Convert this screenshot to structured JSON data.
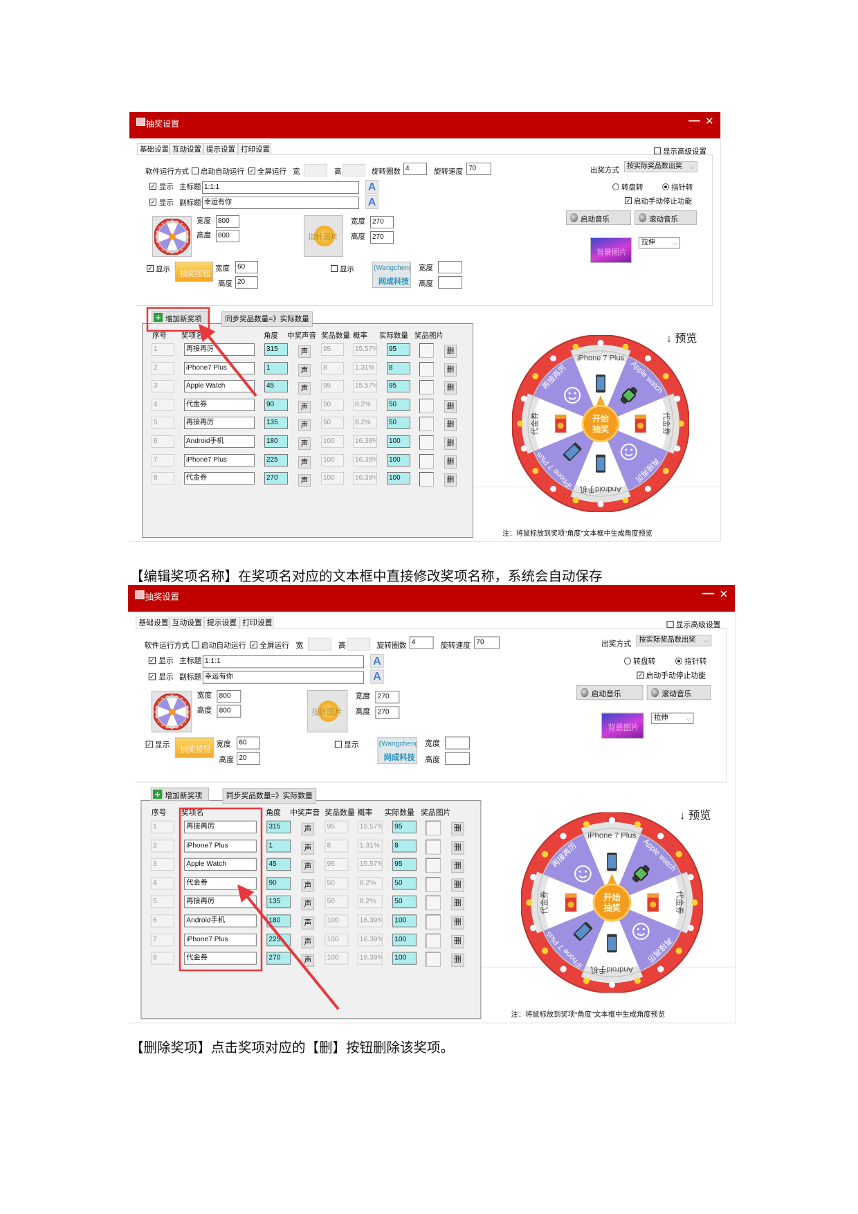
{
  "captions": {
    "edit": "【编辑奖项名称】在奖项名对应的文本框中直接修改奖项名称，系统会自动保存",
    "delete": "【删除奖项】点击奖项对应的【删】按钮删除该奖项。"
  },
  "dialog": {
    "title": "抽奖设置",
    "minimize": "—",
    "close": "✕",
    "tabs": [
      "基础设置",
      "互动设置",
      "提示设置",
      "打印设置"
    ],
    "advanced_label": "显示高级设置",
    "advanced_checked": false,
    "run_mode_label": "软件运行方式",
    "autostart_label": "启动自动运行",
    "autostart_checked": false,
    "fullscreen_label": "全屏运行",
    "fullscreen_checked": true,
    "screen_width_label": "宽",
    "screen_width_value": "",
    "screen_height_label": "高",
    "screen_height_value": "",
    "spins_label": "旋转圈数",
    "spins_value": "4",
    "speed_label": "旋转速度",
    "speed_value": "70",
    "draw_mode_label": "出奖方式",
    "draw_mode_value": "按实际奖品数出奖",
    "rotate_options": [
      {
        "label": "转盘转",
        "selected": false
      },
      {
        "label": "指针转",
        "selected": true
      }
    ],
    "manual_stop_label": "启动手动停止功能",
    "manual_stop_checked": true,
    "start_music_label": "启动音乐",
    "roll_music_label": "滚动音乐",
    "bg_image_text": "背景图片",
    "bg_fit_value": "拉伸",
    "show_label": "显示",
    "main_title_label": "主标题",
    "main_title_value": "1:1:1",
    "main_title_checked": true,
    "subtitle_label": "副标题",
    "subtitle_value": "幸运有你",
    "subtitle_checked": true,
    "width_label": "宽度",
    "height_label": "高度",
    "wheel_width": "800",
    "wheel_height": "800",
    "pointer_image_text": "指针图片",
    "pointer_width": "270",
    "pointer_height": "270",
    "button_show_checked": true,
    "button_image_text": "抽奖按钮",
    "button_width": "60",
    "button_height": "20",
    "logo_show_checked": false,
    "logo_text_top": "(Wangcheng",
    "logo_text_bottom": "网成科技",
    "logo_width": "",
    "logo_height": "",
    "add_item_label": "增加新奖项",
    "sync_label": "同步奖品数量=》实际数量",
    "columns": [
      "序号",
      "奖项名",
      "角度",
      "中奖声音",
      "奖品数量",
      "概率",
      "实际数量",
      "奖品图片"
    ],
    "rows": [
      {
        "index": "1",
        "name": "再接再厉",
        "angle": "315",
        "sound": "声",
        "qty": "95",
        "prob": "15.57%",
        "actual": "95",
        "del": "删"
      },
      {
        "index": "2",
        "name": "iPhone7 Plus",
        "angle": "1",
        "sound": "声",
        "qty": "8",
        "prob": "1.31%",
        "actual": "8",
        "del": "删"
      },
      {
        "index": "3",
        "name": "Apple Watch",
        "angle": "45",
        "sound": "声",
        "qty": "95",
        "prob": "15.57%",
        "actual": "95",
        "del": "删"
      },
      {
        "index": "4",
        "name": "代金券",
        "angle": "90",
        "sound": "声",
        "qty": "50",
        "prob": "8.2%",
        "actual": "50",
        "del": "删"
      },
      {
        "index": "5",
        "name": "再接再厉",
        "angle": "135",
        "sound": "声",
        "qty": "50",
        "prob": "8.2%",
        "actual": "50",
        "del": "删"
      },
      {
        "index": "6",
        "name": "Android手机",
        "angle": "180",
        "sound": "声",
        "qty": "100",
        "prob": "16.39%",
        "actual": "100",
        "del": "删"
      },
      {
        "index": "7",
        "name": "iPhone7 Plus",
        "angle": "225",
        "sound": "声",
        "qty": "100",
        "prob": "16.39%",
        "actual": "100",
        "del": "删"
      },
      {
        "index": "8",
        "name": "代金券",
        "angle": "270",
        "sound": "声",
        "qty": "100",
        "prob": "16.39%",
        "actual": "100",
        "del": "删"
      }
    ],
    "preview_label": "↓ 预览",
    "note": "注：将鼠标放到奖项“角度”文本框中生成角度预览",
    "wheel": {
      "center_label": [
        "开始",
        "抽奖"
      ],
      "segments": [
        {
          "label": "iPhone 7 Plus",
          "color": "#ffffff",
          "icon": "phone-icon"
        },
        {
          "label": "Apple watch",
          "color": "#9d90e2",
          "icon": "watch-icon"
        },
        {
          "label": "代金券",
          "color": "#ffffff",
          "icon": "coupon-icon"
        },
        {
          "label": "再接再厉",
          "color": "#9d90e2",
          "icon": "smiley-icon"
        },
        {
          "label": "Android手机",
          "color": "#ffffff",
          "icon": "phone-icon"
        },
        {
          "label": "iPhone 7 Plus",
          "color": "#9d90e2",
          "icon": "phone-icon"
        },
        {
          "label": "代金券",
          "color": "#ffffff",
          "icon": "coupon-icon"
        },
        {
          "label": "再接再厉",
          "color": "#9d90e2",
          "icon": "smiley-icon"
        }
      ]
    }
  },
  "colors": {
    "titlebar": "#c10000",
    "highlight": "#e8383d",
    "input_cyan": "#aeeeee",
    "wheel_ring": "#e8413c"
  },
  "highlights": [
    "add-item-button",
    "prize-name-column"
  ]
}
